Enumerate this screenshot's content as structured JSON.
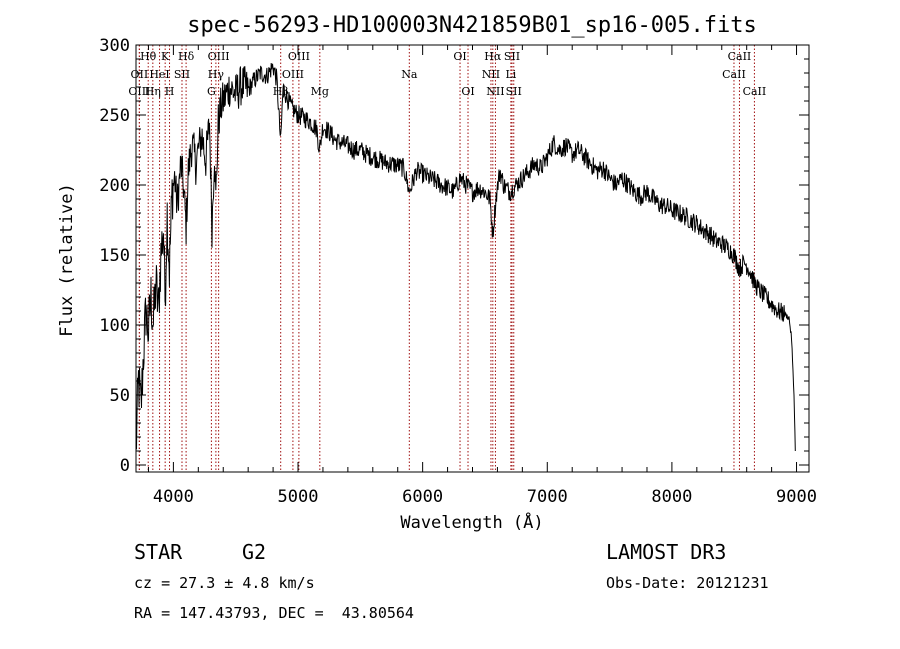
{
  "chart_data": {
    "type": "line",
    "title": "spec-56293-HD100003N421859B01_sp16-005.fits",
    "xlabel": "Wavelength (Å)",
    "ylabel": "Flux (relative)",
    "xlim": [
      3700,
      9100
    ],
    "ylim": [
      -5,
      300
    ],
    "xticks": [
      4000,
      5000,
      6000,
      7000,
      8000,
      9000
    ],
    "yticks": [
      0,
      50,
      100,
      150,
      200,
      250,
      300
    ],
    "series": [
      {
        "name": "spectrum",
        "x": [
          3700,
          3720,
          3740,
          3760,
          3780,
          3800,
          3820,
          3840,
          3860,
          3880,
          3900,
          3920,
          3933,
          3950,
          3968,
          3990,
          4010,
          4030,
          4060,
          4080,
          4102,
          4120,
          4150,
          4180,
          4200,
          4230,
          4260,
          4290,
          4310,
          4330,
          4340,
          4360,
          4380,
          4400,
          4450,
          4500,
          4550,
          4600,
          4650,
          4700,
          4750,
          4800,
          4830,
          4861,
          4880,
          4900,
          4950,
          5000,
          5050,
          5100,
          5150,
          5172,
          5200,
          5250,
          5300,
          5350,
          5400,
          5450,
          5500,
          5550,
          5600,
          5650,
          5700,
          5750,
          5800,
          5850,
          5893,
          5950,
          6000,
          6050,
          6100,
          6150,
          6200,
          6250,
          6300,
          6350,
          6400,
          6450,
          6500,
          6540,
          6563,
          6590,
          6620,
          6650,
          6700,
          6750,
          6800,
          6850,
          6900,
          6950,
          7000,
          7050,
          7100,
          7150,
          7200,
          7250,
          7300,
          7350,
          7400,
          7450,
          7500,
          7550,
          7600,
          7650,
          7700,
          7750,
          7800,
          7850,
          7900,
          7950,
          8000,
          8050,
          8100,
          8150,
          8200,
          8250,
          8300,
          8350,
          8400,
          8450,
          8498,
          8542,
          8580,
          8620,
          8662,
          8700,
          8750,
          8800,
          8850,
          8900,
          8940,
          8960,
          8980,
          8990
        ],
        "values": [
          10,
          60,
          40,
          80,
          110,
          95,
          120,
          100,
          130,
          110,
          150,
          170,
          120,
          180,
          140,
          195,
          205,
          185,
          215,
          200,
          170,
          210,
          230,
          215,
          225,
          235,
          218,
          245,
          170,
          225,
          190,
          245,
          255,
          260,
          270,
          265,
          272,
          268,
          275,
          280,
          278,
          285,
          275,
          230,
          270,
          265,
          255,
          250,
          248,
          245,
          240,
          225,
          242,
          238,
          232,
          230,
          228,
          225,
          225,
          222,
          220,
          218,
          216,
          215,
          214,
          212,
          195,
          210,
          208,
          205,
          203,
          200,
          198,
          195,
          205,
          200,
          195,
          198,
          195,
          190,
          165,
          192,
          210,
          200,
          195,
          200,
          205,
          210,
          215,
          212,
          220,
          230,
          225,
          228,
          222,
          225,
          220,
          215,
          210,
          212,
          205,
          200,
          205,
          200,
          195,
          192,
          195,
          190,
          186,
          185,
          182,
          180,
          178,
          175,
          172,
          168,
          165,
          160,
          158,
          155,
          150,
          140,
          145,
          140,
          130,
          125,
          120,
          115,
          110,
          108,
          105,
          90,
          50,
          10
        ]
      }
    ],
    "spectral_lines": [
      {
        "name": "Hθ",
        "wavelength": 3798,
        "row": 0
      },
      {
        "name": "OII",
        "wavelength": 3727,
        "row": 1
      },
      {
        "name": "OIII",
        "wavelength": 3727,
        "row": 2
      },
      {
        "name": "K",
        "wavelength": 3934,
        "row": 0
      },
      {
        "name": "HeI",
        "wavelength": 3889,
        "row": 1
      },
      {
        "name": "Hη",
        "wavelength": 3835,
        "row": 2
      },
      {
        "name": "Hδ",
        "wavelength": 4102,
        "row": 0
      },
      {
        "name": "SII",
        "wavelength": 4069,
        "row": 1
      },
      {
        "name": "H",
        "wavelength": 3969,
        "row": 2
      },
      {
        "name": "OIII",
        "wavelength": 4363,
        "row": 0
      },
      {
        "name": "Hγ",
        "wavelength": 4341,
        "row": 1
      },
      {
        "name": "G",
        "wavelength": 4305,
        "row": 2
      },
      {
        "name": "OIII",
        "wavelength": 5007,
        "row": 0
      },
      {
        "name": "OIII",
        "wavelength": 4959,
        "row": 1
      },
      {
        "name": "Hβ",
        "wavelength": 4861,
        "row": 2
      },
      {
        "name": "Mg",
        "wavelength": 5175,
        "row": 2
      },
      {
        "name": "Na",
        "wavelength": 5893,
        "row": 1
      },
      {
        "name": "OI",
        "wavelength": 6300,
        "row": 0
      },
      {
        "name": "OI",
        "wavelength": 6364,
        "row": 2
      },
      {
        "name": "Hα",
        "wavelength": 6563,
        "row": 0
      },
      {
        "name": "NII",
        "wavelength": 6548,
        "row": 1
      },
      {
        "name": "NII",
        "wavelength": 6584,
        "row": 2
      },
      {
        "name": "SII",
        "wavelength": 6717,
        "row": 0
      },
      {
        "name": "Li",
        "wavelength": 6708,
        "row": 1
      },
      {
        "name": "SII",
        "wavelength": 6731,
        "row": 2
      },
      {
        "name": "CaII",
        "wavelength": 8542,
        "row": 0
      },
      {
        "name": "CaII",
        "wavelength": 8498,
        "row": 1
      },
      {
        "name": "CaII",
        "wavelength": 8662,
        "row": 2
      }
    ]
  },
  "info": {
    "class": "STAR",
    "subclass": "G2",
    "survey": "LAMOST DR3",
    "cz": "cz = 27.3 ± 4.8 km/s",
    "obs_date": "Obs-Date: 20121231",
    "coords": "RA = 147.43793, DEC =  43.80564"
  },
  "colors": {
    "line_marker": "#a01010",
    "spectrum": "#000000"
  }
}
